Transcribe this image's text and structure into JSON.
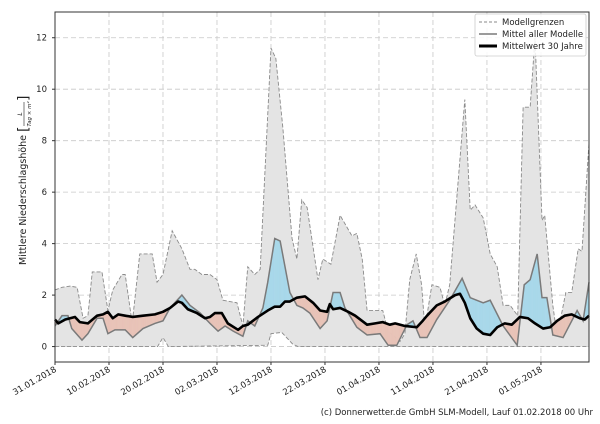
{
  "chart_data": {
    "type": "area",
    "title": "",
    "ylabel": "Mittlere Niederschlagshöhe",
    "ylabel_unit_num": "L",
    "ylabel_unit_den": "Tag × m²",
    "xlabel": "",
    "x_unit": "days since 31.01.2018",
    "xlim": [
      0,
      98.9
    ],
    "ylim": [
      -0.6,
      13
    ],
    "grid": true,
    "yticks": [
      0,
      2,
      4,
      6,
      8,
      10,
      12
    ],
    "xticks": [
      {
        "day": 0,
        "label": "31.01.2018"
      },
      {
        "day": 10,
        "label": "10.02.2018"
      },
      {
        "day": 20,
        "label": "20.02.2018"
      },
      {
        "day": 30,
        "label": "02.03.2018"
      },
      {
        "day": 40,
        "label": "12.03.2018"
      },
      {
        "day": 50,
        "label": "22.03.2018"
      },
      {
        "day": 60,
        "label": "01.04.2018"
      },
      {
        "day": 70,
        "label": "11.04.2018"
      },
      {
        "day": 80,
        "label": "21.04.2018"
      },
      {
        "day": 90,
        "label": "01.05.2018"
      }
    ],
    "legend_position": "top-right",
    "legend": [
      "Modellgrenzen",
      "Mittel aller Modelle",
      "Mittelwert 30 Jahre"
    ],
    "colors": {
      "band": "#e4e4e4",
      "band_edge": "#8a8a8a",
      "mean": "#7a7a7a",
      "climate": "#000000",
      "above": "#a8d8ea",
      "below": "#e8c3b7"
    },
    "series": [
      {
        "name": "Modellgrenzen oben",
        "points": [
          [
            0,
            2.2
          ],
          [
            1.3,
            2.3
          ],
          [
            2.8,
            2.35
          ],
          [
            4.1,
            2.3
          ],
          [
            5.2,
            1.1
          ],
          [
            6.1,
            1.2
          ],
          [
            6.9,
            2.9
          ],
          [
            8.7,
            2.9
          ],
          [
            9.8,
            1.4
          ],
          [
            10.7,
            2.2
          ],
          [
            12.4,
            2.8
          ],
          [
            13,
            2.8
          ],
          [
            14.3,
            0.9
          ],
          [
            15.7,
            3.6
          ],
          [
            18,
            3.6
          ],
          [
            18.9,
            2.5
          ],
          [
            20,
            2.8
          ],
          [
            21.7,
            4.5
          ],
          [
            23.5,
            3.8
          ],
          [
            25,
            3.0
          ],
          [
            25.9,
            3.0
          ],
          [
            27.2,
            2.8
          ],
          [
            28.7,
            2.8
          ],
          [
            30,
            2.6
          ],
          [
            31.1,
            1.8
          ],
          [
            33.7,
            1.7
          ],
          [
            34.8,
            0.8
          ],
          [
            35.7,
            3.1
          ],
          [
            37,
            2.8
          ],
          [
            38,
            3.0
          ],
          [
            40,
            11.6
          ],
          [
            40.9,
            11.2
          ],
          [
            42.2,
            8.5
          ],
          [
            43.9,
            4.2
          ],
          [
            44.8,
            3.4
          ],
          [
            45.7,
            5.7
          ],
          [
            46.7,
            5.4
          ],
          [
            48.7,
            2.6
          ],
          [
            49.6,
            3.4
          ],
          [
            51.1,
            3.2
          ],
          [
            52.8,
            5.1
          ],
          [
            55,
            4.3
          ],
          [
            55.9,
            4.4
          ],
          [
            56.9,
            3.4
          ],
          [
            57.8,
            1.4
          ],
          [
            60.7,
            1.4
          ],
          [
            61.7,
            0.6
          ],
          [
            63.9,
            0.2
          ],
          [
            64.8,
            0.5
          ],
          [
            65.7,
            2.6
          ],
          [
            66.9,
            3.6
          ],
          [
            67.9,
            2.4
          ],
          [
            68.5,
            0.7
          ],
          [
            69.8,
            2.4
          ],
          [
            71.3,
            2.3
          ],
          [
            72.2,
            1.6
          ],
          [
            73.1,
            2.4
          ],
          [
            75.9,
            9.6
          ],
          [
            76.9,
            5.3
          ],
          [
            77.8,
            5.5
          ],
          [
            79.3,
            5.0
          ],
          [
            80.6,
            3.6
          ],
          [
            81.9,
            3.1
          ],
          [
            83,
            1.6
          ],
          [
            84.3,
            1.6
          ],
          [
            85.7,
            1.2
          ],
          [
            86.7,
            9.3
          ],
          [
            88,
            9.3
          ],
          [
            88.9,
            12.0
          ],
          [
            90.2,
            4.9
          ],
          [
            90.7,
            5.1
          ],
          [
            92.2,
            1.6
          ],
          [
            93,
            0.4
          ],
          [
            94.6,
            2.1
          ],
          [
            95.7,
            2.1
          ],
          [
            96.9,
            3.8
          ],
          [
            97.6,
            3.7
          ],
          [
            98.9,
            7.9
          ]
        ]
      },
      {
        "name": "Modellgrenzen unten",
        "points": [
          [
            0,
            0
          ],
          [
            19,
            0
          ],
          [
            20,
            0.35
          ],
          [
            21,
            0
          ],
          [
            39.4,
            0.05
          ],
          [
            40,
            0.5
          ],
          [
            42,
            0.55
          ],
          [
            44,
            0.1
          ],
          [
            45,
            0
          ],
          [
            98.9,
            0
          ]
        ]
      },
      {
        "name": "Mittel aller Modelle",
        "points": [
          [
            0,
            0.8
          ],
          [
            1.3,
            1.2
          ],
          [
            2.4,
            1.2
          ],
          [
            3.1,
            0.7
          ],
          [
            5,
            0.25
          ],
          [
            6.1,
            0.5
          ],
          [
            7.8,
            1.1
          ],
          [
            8.9,
            1.1
          ],
          [
            9.8,
            0.5
          ],
          [
            11.1,
            0.65
          ],
          [
            13,
            0.65
          ],
          [
            14.4,
            0.35
          ],
          [
            16.3,
            0.7
          ],
          [
            18.5,
            0.9
          ],
          [
            20,
            1.0
          ],
          [
            21.3,
            1.5
          ],
          [
            23.5,
            2.0
          ],
          [
            25,
            1.6
          ],
          [
            26.9,
            1.3
          ],
          [
            28.7,
            0.9
          ],
          [
            30.2,
            0.6
          ],
          [
            31.5,
            0.8
          ],
          [
            33,
            0.6
          ],
          [
            34.8,
            0.4
          ],
          [
            35.7,
            1.0
          ],
          [
            37,
            0.8
          ],
          [
            38.5,
            1.5
          ],
          [
            39.4,
            2.5
          ],
          [
            40.7,
            4.2
          ],
          [
            41.7,
            4.1
          ],
          [
            43.5,
            2.1
          ],
          [
            44.8,
            1.6
          ],
          [
            45.9,
            1.5
          ],
          [
            47.2,
            1.3
          ],
          [
            49.1,
            0.7
          ],
          [
            50.4,
            1.0
          ],
          [
            51.5,
            2.1
          ],
          [
            52.8,
            2.1
          ],
          [
            53.7,
            1.5
          ],
          [
            54.6,
            1.2
          ],
          [
            55.9,
            0.75
          ],
          [
            57.8,
            0.45
          ],
          [
            60.2,
            0.5
          ],
          [
            61.7,
            0.05
          ],
          [
            63.3,
            0.05
          ],
          [
            65.2,
            0.85
          ],
          [
            66.3,
            1.0
          ],
          [
            67.6,
            0.35
          ],
          [
            68.9,
            0.35
          ],
          [
            70.7,
            1.05
          ],
          [
            73.1,
            1.8
          ],
          [
            75.4,
            2.65
          ],
          [
            76.9,
            1.9
          ],
          [
            79.3,
            1.7
          ],
          [
            80.6,
            1.8
          ],
          [
            83,
            0.8
          ],
          [
            85.6,
            0.05
          ],
          [
            86.9,
            2.4
          ],
          [
            88,
            2.6
          ],
          [
            89.3,
            3.6
          ],
          [
            90.2,
            1.9
          ],
          [
            91.1,
            1.9
          ],
          [
            92.2,
            0.45
          ],
          [
            94.1,
            0.35
          ],
          [
            96.7,
            1.4
          ],
          [
            97.8,
            1.0
          ],
          [
            98.9,
            2.5
          ]
        ]
      },
      {
        "name": "Mittelwert 30 Jahre",
        "points": [
          [
            0,
            1.05
          ],
          [
            0.6,
            0.9
          ],
          [
            1.9,
            1.05
          ],
          [
            3.7,
            1.15
          ],
          [
            4.6,
            0.95
          ],
          [
            6.1,
            0.9
          ],
          [
            7.8,
            1.2
          ],
          [
            8.9,
            1.25
          ],
          [
            9.8,
            1.35
          ],
          [
            10.7,
            1.1
          ],
          [
            11.7,
            1.25
          ],
          [
            13,
            1.2
          ],
          [
            14.4,
            1.15
          ],
          [
            16.3,
            1.2
          ],
          [
            18.5,
            1.25
          ],
          [
            20,
            1.35
          ],
          [
            21.3,
            1.5
          ],
          [
            22.8,
            1.75
          ],
          [
            23.5,
            1.7
          ],
          [
            24.6,
            1.45
          ],
          [
            26.3,
            1.3
          ],
          [
            27.8,
            1.1
          ],
          [
            28.7,
            1.15
          ],
          [
            29.6,
            1.3
          ],
          [
            30.9,
            1.3
          ],
          [
            32,
            0.9
          ],
          [
            33.9,
            0.65
          ],
          [
            34.8,
            0.8
          ],
          [
            35.7,
            0.85
          ],
          [
            37.6,
            1.15
          ],
          [
            39.4,
            1.4
          ],
          [
            40.7,
            1.55
          ],
          [
            41.7,
            1.55
          ],
          [
            42.6,
            1.75
          ],
          [
            43.5,
            1.75
          ],
          [
            44.8,
            1.9
          ],
          [
            46.3,
            1.95
          ],
          [
            47.8,
            1.7
          ],
          [
            49.1,
            1.4
          ],
          [
            50.4,
            1.35
          ],
          [
            50.9,
            1.65
          ],
          [
            51.5,
            1.45
          ],
          [
            52.8,
            1.5
          ],
          [
            54.3,
            1.35
          ],
          [
            55.6,
            1.2
          ],
          [
            57.8,
            0.85
          ],
          [
            59.3,
            0.9
          ],
          [
            60.7,
            0.95
          ],
          [
            62,
            0.85
          ],
          [
            63,
            0.9
          ],
          [
            64.8,
            0.8
          ],
          [
            67,
            0.75
          ],
          [
            68.1,
            1.0
          ],
          [
            68.9,
            1.2
          ],
          [
            70.7,
            1.6
          ],
          [
            72.2,
            1.75
          ],
          [
            74.1,
            2.0
          ],
          [
            75,
            2.05
          ],
          [
            75.9,
            1.7
          ],
          [
            76.9,
            1.1
          ],
          [
            78.1,
            0.7
          ],
          [
            79.3,
            0.5
          ],
          [
            80.6,
            0.45
          ],
          [
            81.9,
            0.75
          ],
          [
            83.3,
            0.9
          ],
          [
            84.6,
            0.85
          ],
          [
            86.1,
            1.15
          ],
          [
            87.6,
            1.1
          ],
          [
            88.9,
            0.9
          ],
          [
            90.4,
            0.7
          ],
          [
            91.7,
            0.75
          ],
          [
            93,
            1.0
          ],
          [
            94.4,
            1.2
          ],
          [
            95.7,
            1.25
          ],
          [
            97.2,
            1.1
          ],
          [
            98.1,
            1.05
          ],
          [
            98.9,
            1.2
          ]
        ]
      }
    ]
  },
  "footer": "(c) Donnerwetter.de GmbH SLM-Modell, Lauf 01.02.2018 00 Uhr"
}
